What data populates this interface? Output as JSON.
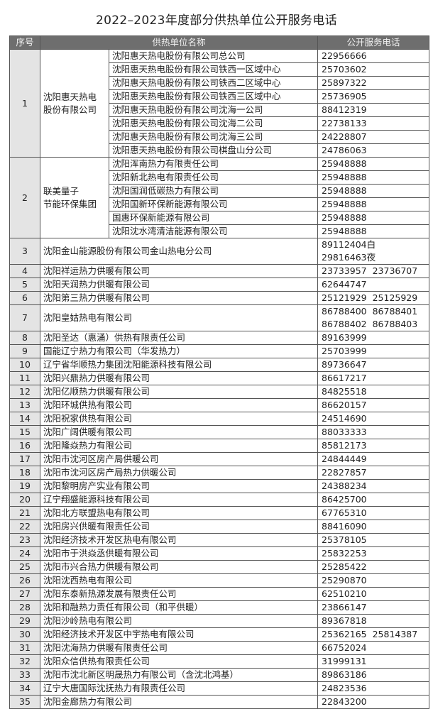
{
  "title": "2022–2023年度部分供热单位公开服务电话",
  "headers": {
    "no": "序号",
    "name": "供热单位名称",
    "phone": "公开服务电话"
  },
  "groups": [
    {
      "no": "1",
      "name_lines": [
        "沈阳惠天热电",
        "股份有限公司"
      ],
      "units": [
        {
          "name": "沈阳惠天热电股份有限公司总公司",
          "phone": "22956666"
        },
        {
          "name": "沈阳惠天热电股份有限公司铁西一区域中心",
          "phone": "25703602"
        },
        {
          "name": "沈阳惠天热电股份有限公司铁西二区域中心",
          "phone": "25897322"
        },
        {
          "name": "沈阳惠天热电股份有限公司铁西三区域中心",
          "phone": "25736905"
        },
        {
          "name": "沈阳惠天热电股份有限公司沈海一公司",
          "phone": "88412319"
        },
        {
          "name": "沈阳惠天热电股份有限公司沈海二公司",
          "phone": "22738133"
        },
        {
          "name": "沈阳惠天热电股份有限公司沈海三公司",
          "phone": "24228807"
        },
        {
          "name": "沈阳惠天热电股份有限公司棋盘山分公司",
          "phone": "24786063"
        }
      ]
    },
    {
      "no": "2",
      "name_lines": [
        "联美量子",
        "节能环保集团"
      ],
      "units": [
        {
          "name": "沈阳浑南热力有限责任公司",
          "phone": "25948888"
        },
        {
          "name": "沈阳新北热电有限责任公司",
          "phone": "25948888"
        },
        {
          "name": "沈阳国润低碳热力有限公司",
          "phone": "25948888"
        },
        {
          "name": "沈阳国新环保新能源有限公司",
          "phone": "25948888"
        },
        {
          "name": "国惠环保新能源有限公司",
          "phone": "25948888"
        },
        {
          "name": "沈阳沈水湾清洁能源有限公司",
          "phone": "25948888"
        }
      ]
    }
  ],
  "rows": [
    {
      "no": "3",
      "name": "沈阳金山能源股份有限公司金山热电分公司",
      "phones": [
        "89112404白",
        "29816463夜"
      ]
    },
    {
      "no": "4",
      "name": "沈阳祥运热力供暖有限公司",
      "phones": [
        "23733957  23736707"
      ]
    },
    {
      "no": "5",
      "name": "沈阳天润热力供暖有限公司",
      "phones": [
        "62644747"
      ]
    },
    {
      "no": "6",
      "name": "沈阳第三热力供暖有限公司",
      "phones": [
        "25121929  25125929"
      ]
    },
    {
      "no": "7",
      "name": "沈阳皇姑热电有限公司",
      "phones": [
        "86788400  86788401",
        "86788402  86788403"
      ]
    },
    {
      "no": "8",
      "name": "沈阳圣达（惠涌）供热有限责任公司",
      "phones": [
        "89163999"
      ]
    },
    {
      "no": "9",
      "name": "国能辽宁热力有限公司（华发热力）",
      "phones": [
        "25703999"
      ]
    },
    {
      "no": "10",
      "name": "辽宁省华顺热力集团沈阳能源科技有限公司",
      "phones": [
        "89736647"
      ]
    },
    {
      "no": "11",
      "name": "沈阳兴鼎热力供暖有限公司",
      "phones": [
        "86617217"
      ]
    },
    {
      "no": "12",
      "name": "沈阳亿顺热力供暖有限公司",
      "phones": [
        "84825518"
      ]
    },
    {
      "no": "13",
      "name": "沈阳环城供热有限公司",
      "phones": [
        "86620157"
      ]
    },
    {
      "no": "14",
      "name": "沈阳祝家供热有限公司",
      "phones": [
        "24514690"
      ]
    },
    {
      "no": "15",
      "name": "沈阳广阔供暖有限公司",
      "phones": [
        "88033333"
      ]
    },
    {
      "no": "16",
      "name": "沈阳隆焱热力有限公司",
      "phones": [
        "85812173"
      ]
    },
    {
      "no": "17",
      "name": "沈阳市沈河区房产局供暖公司",
      "phones": [
        "24844449"
      ]
    },
    {
      "no": "18",
      "name": "沈阳市沈河区房产局热力供暖公司",
      "phones": [
        "22827857"
      ]
    },
    {
      "no": "19",
      "name": "沈阳黎明房产实业有限公司",
      "phones": [
        "24388234"
      ]
    },
    {
      "no": "20",
      "name": "辽宁翔盛能源科技有限公司",
      "phones": [
        "86425700"
      ]
    },
    {
      "no": "21",
      "name": "沈阳北方联盟热电有限公司",
      "phones": [
        "67765310"
      ]
    },
    {
      "no": "22",
      "name": "沈阳房兴供暖有限责任公司",
      "phones": [
        "88416090"
      ]
    },
    {
      "no": "23",
      "name": "沈阳经济技术开发区热电有限公司",
      "phones": [
        "25378105"
      ]
    },
    {
      "no": "24",
      "name": "沈阳市于洪焱丞供暖有限公司",
      "phones": [
        "25832253"
      ]
    },
    {
      "no": "25",
      "name": "沈阳市兴合热力供暖有限公司",
      "phones": [
        "25285422"
      ]
    },
    {
      "no": "26",
      "name": "沈阳沈西热电有限公司",
      "phones": [
        "25290870"
      ]
    },
    {
      "no": "27",
      "name": "沈阳东泰新热源发展有限责任公司",
      "phones": [
        "62510210"
      ]
    },
    {
      "no": "28",
      "name": "沈阳和融热力责任有限公司（和平供暖）",
      "phones": [
        "23866147"
      ]
    },
    {
      "no": "29",
      "name": "沈阳沙岭热电有限公司",
      "phones": [
        "89367818"
      ]
    },
    {
      "no": "30",
      "name": "沈阳经济技术开发区中宇热电有限公司",
      "phones": [
        "25362165  25814387"
      ]
    },
    {
      "no": "31",
      "name": "沈阳沈海热力供暖有限责任公司",
      "phones": [
        "66752024"
      ]
    },
    {
      "no": "32",
      "name": "沈阳众信供热有限责任公司",
      "phones": [
        "31999131"
      ]
    },
    {
      "no": "33",
      "name": "沈阳市沈北新区明晟热力有限公司（含沈北鸿基）",
      "phones": [
        "89863186"
      ]
    },
    {
      "no": "34",
      "name": "辽宁大唐国际沈抚热力有限责任公司",
      "phones": [
        "24823536"
      ]
    },
    {
      "no": "35",
      "name": "沈阳金廊热力有限公司",
      "phones": [
        "22843200"
      ]
    }
  ]
}
